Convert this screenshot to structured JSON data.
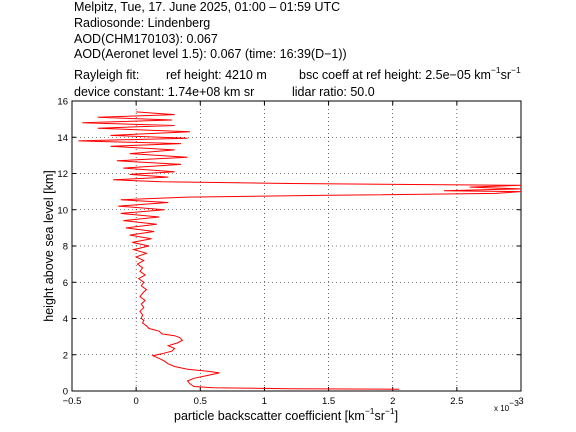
{
  "header": {
    "line1": "Melpitz, Tue, 17. June 2025, 01:00 – 01:59 UTC",
    "line2": "Radiosonde: Lindenberg",
    "line3": "AOD(CHM170103): 0.067",
    "line4": "AOD(Aeronet level 1.5): 0.067   (time: 16:39(D−1))",
    "rayleigh_label": "Rayleigh fit:",
    "ref_height": "ref height: 4210 m",
    "bsc_coeff_prefix": "bsc coeff at ref height: 2.5e−05 km",
    "bsc_sup1": "−1",
    "bsc_mid": "sr",
    "bsc_sup2": "−1",
    "device_constant": "device constant: 1.74e+08 km sr",
    "lidar_ratio": "lidar ratio: 50.0"
  },
  "axes": {
    "ylabel": "height above sea level [km]",
    "xlabel_prefix": "particle backscatter coefficient [km",
    "xlabel_sup1": "−1",
    "xlabel_mid": "sr",
    "xlabel_sup2": "−1",
    "xlabel_suffix": "]",
    "x_multiplier": "x 10",
    "x_multiplier_exp": "−3"
  },
  "colors": {
    "line": "#ff0000",
    "grid": "#000000",
    "axis": "#000000",
    "background": "#ffffff"
  },
  "chart_data": {
    "type": "line",
    "title": "",
    "xlabel": "particle backscatter coefficient [km^-1 sr^-1]",
    "ylabel": "height above sea level [km]",
    "x_scale_multiplier": 0.001,
    "xlim": [
      -0.5,
      3
    ],
    "ylim": [
      0,
      16
    ],
    "x_ticks": [
      -0.5,
      0,
      0.5,
      1,
      1.5,
      2,
      2.5,
      3
    ],
    "x_tick_labels": [
      "−0.5",
      "0",
      "0.5",
      "1",
      "1.5",
      "2",
      "2.5",
      "3"
    ],
    "y_ticks": [
      0,
      2,
      4,
      6,
      8,
      10,
      12,
      14,
      16
    ],
    "y_tick_labels": [
      "0",
      "2",
      "4",
      "6",
      "8",
      "10",
      "12",
      "14",
      "16"
    ],
    "grid": true,
    "series": [
      {
        "points": [
          [
            2.05,
            0.1
          ],
          [
            1.2,
            0.12
          ],
          [
            0.6,
            0.18
          ],
          [
            0.45,
            0.25
          ],
          [
            0.42,
            0.4
          ],
          [
            0.4,
            0.55
          ],
          [
            0.45,
            0.7
          ],
          [
            0.55,
            0.85
          ],
          [
            0.65,
            1.0
          ],
          [
            0.55,
            1.1
          ],
          [
            0.4,
            1.2
          ],
          [
            0.3,
            1.35
          ],
          [
            0.25,
            1.5
          ],
          [
            0.22,
            1.65
          ],
          [
            0.18,
            1.8
          ],
          [
            0.13,
            1.95
          ],
          [
            0.2,
            2.05
          ],
          [
            0.28,
            2.2
          ],
          [
            0.3,
            2.35
          ],
          [
            0.25,
            2.5
          ],
          [
            0.32,
            2.65
          ],
          [
            0.36,
            2.8
          ],
          [
            0.34,
            2.95
          ],
          [
            0.3,
            3.05
          ],
          [
            0.2,
            3.15
          ],
          [
            0.18,
            3.3
          ],
          [
            0.1,
            3.45
          ],
          [
            0.08,
            3.6
          ],
          [
            0.05,
            3.75
          ],
          [
            0.06,
            3.9
          ],
          [
            0.04,
            4.0
          ],
          [
            0.05,
            4.2
          ],
          [
            0.03,
            4.4
          ],
          [
            0.06,
            4.6
          ],
          [
            0.04,
            4.8
          ],
          [
            0.07,
            5.0
          ],
          [
            0.03,
            5.2
          ],
          [
            0.05,
            5.4
          ],
          [
            0.08,
            5.6
          ],
          [
            0.04,
            5.8
          ],
          [
            0.06,
            6.0
          ],
          [
            0.02,
            6.2
          ],
          [
            0.07,
            6.4
          ],
          [
            0.03,
            6.6
          ],
          [
            0.05,
            6.8
          ],
          [
            0.01,
            7.0
          ],
          [
            0.06,
            7.2
          ],
          [
            0.0,
            7.4
          ],
          [
            0.08,
            7.6
          ],
          [
            -0.02,
            7.8
          ],
          [
            0.1,
            8.0
          ],
          [
            -0.03,
            8.2
          ],
          [
            0.12,
            8.4
          ],
          [
            -0.05,
            8.6
          ],
          [
            0.14,
            8.8
          ],
          [
            -0.08,
            9.0
          ],
          [
            0.16,
            9.2
          ],
          [
            -0.1,
            9.4
          ],
          [
            0.18,
            9.6
          ],
          [
            -0.12,
            9.8
          ],
          [
            0.22,
            10.0
          ],
          [
            -0.14,
            10.2
          ],
          [
            0.25,
            10.4
          ],
          [
            -0.12,
            10.55
          ],
          [
            0.4,
            10.7
          ],
          [
            1.5,
            10.8
          ],
          [
            2.8,
            10.9
          ],
          [
            3.0,
            11.0
          ],
          [
            2.4,
            11.05
          ],
          [
            3.0,
            11.15
          ],
          [
            2.6,
            11.25
          ],
          [
            3.0,
            11.35
          ],
          [
            1.2,
            11.45
          ],
          [
            0.2,
            11.55
          ],
          [
            -0.18,
            11.65
          ],
          [
            0.25,
            11.8
          ],
          [
            -0.05,
            11.95
          ],
          [
            0.3,
            12.1
          ],
          [
            -0.1,
            12.3
          ],
          [
            0.35,
            12.5
          ],
          [
            -0.15,
            12.7
          ],
          [
            0.4,
            12.9
          ],
          [
            -0.05,
            13.1
          ],
          [
            0.3,
            13.3
          ],
          [
            -0.2,
            13.5
          ],
          [
            0.35,
            13.65
          ],
          [
            -0.45,
            13.8
          ],
          [
            0.4,
            13.95
          ],
          [
            -0.2,
            14.1
          ],
          [
            0.42,
            14.3
          ],
          [
            -0.3,
            14.5
          ],
          [
            0.3,
            14.65
          ],
          [
            -0.42,
            14.8
          ],
          [
            0.28,
            14.95
          ],
          [
            -0.3,
            15.1
          ],
          [
            0.3,
            15.25
          ],
          [
            0.0,
            15.4
          ]
        ]
      }
    ]
  }
}
